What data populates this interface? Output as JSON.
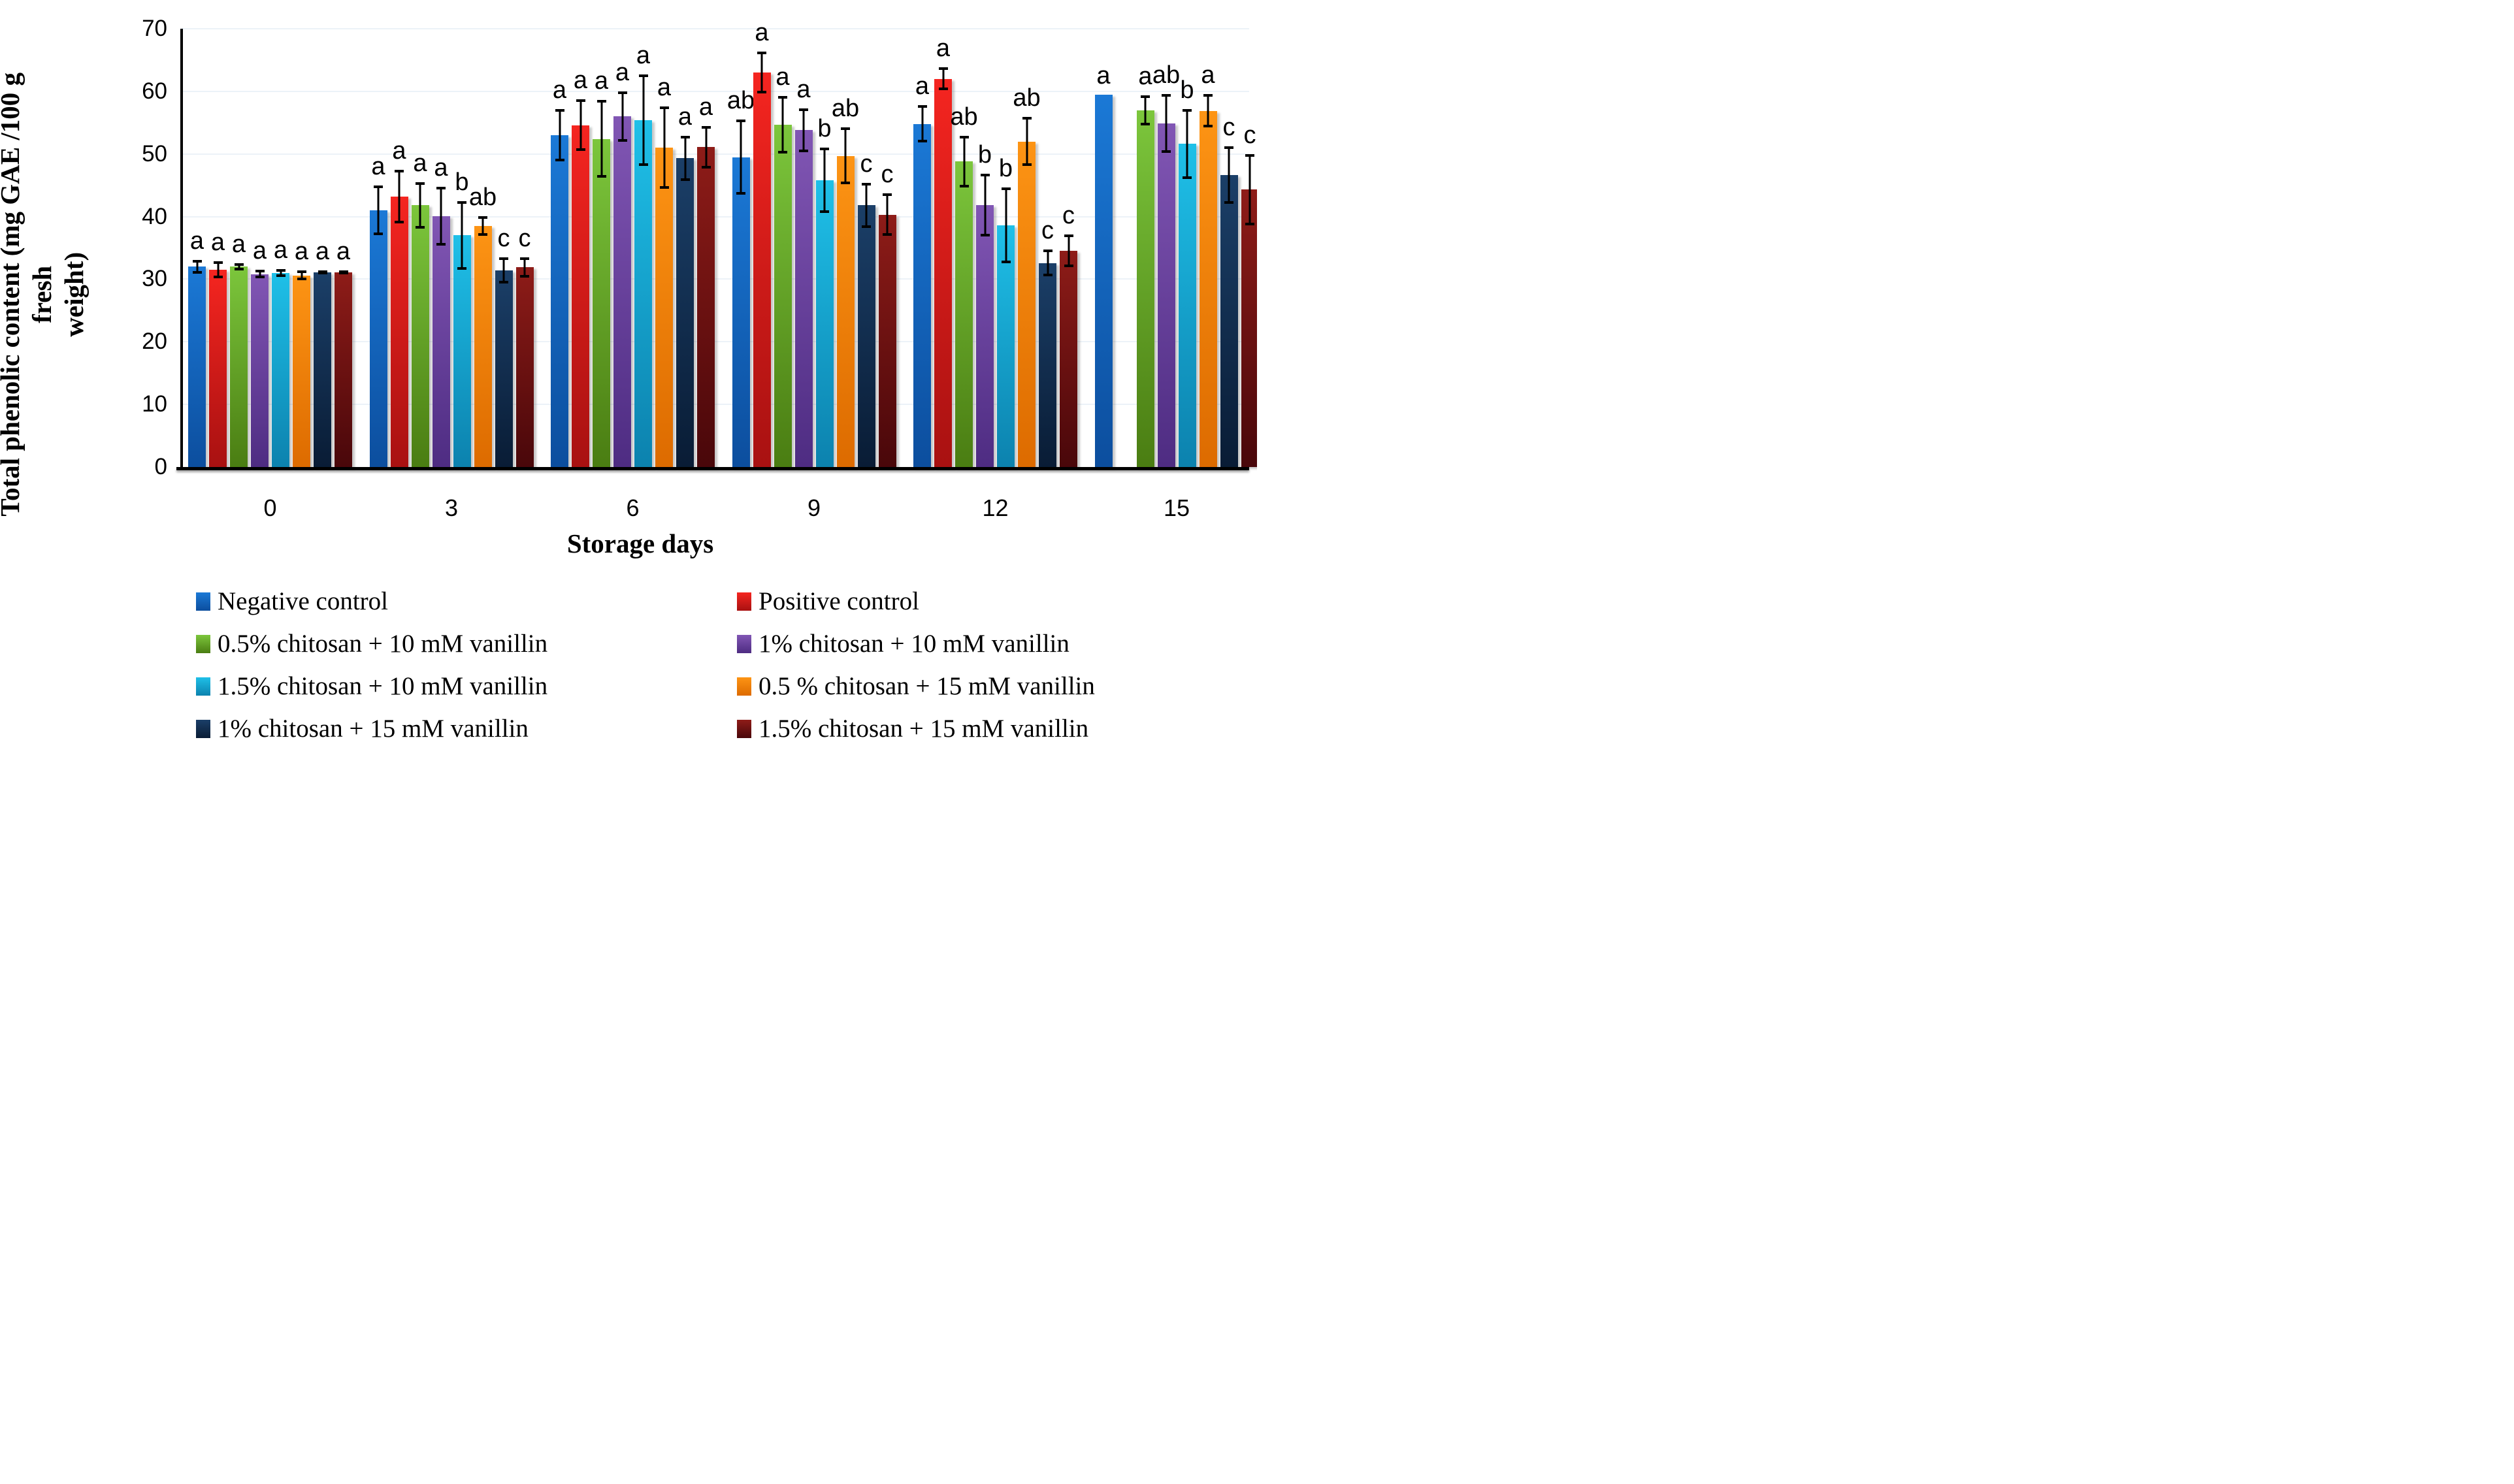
{
  "chart_data": {
    "type": "bar",
    "title": "",
    "xlabel": "Storage days",
    "ylabel": "Total phenolic content (mg GAE /100 g fresh weight)",
    "ylabel_line1": "Total phenolic content (mg GAE /100 g fresh",
    "ylabel_line2": "weight)",
    "ylim": [
      0,
      70
    ],
    "yticks": [
      0,
      10,
      20,
      30,
      40,
      50,
      60,
      70
    ],
    "categories": [
      "0",
      "3",
      "6",
      "9",
      "12",
      "15"
    ],
    "grid": "horizontal, very light",
    "legend_position": "bottom, two columns",
    "error_bars": "plus-minus with caps",
    "series": [
      {
        "name": "Negative control",
        "color_top": "#1b79d6",
        "color_bottom": "#0c4e9e",
        "values": [
          32.0,
          41.0,
          53.0,
          49.5,
          54.8,
          59.5
        ],
        "errors": [
          1.1,
          4.0,
          4.2,
          6.0,
          3.0,
          0
        ],
        "letters": [
          "a",
          "a",
          "a",
          "ab",
          "a",
          "a"
        ]
      },
      {
        "name": "Positive control",
        "color_top": "#f52520",
        "color_bottom": "#a81111",
        "values": [
          31.5,
          43.2,
          54.6,
          63.0,
          62.0,
          null
        ],
        "errors": [
          1.4,
          4.3,
          4.1,
          3.3,
          1.8,
          null
        ],
        "letters": [
          "a",
          "a",
          "a",
          "a",
          "a",
          null
        ]
      },
      {
        "name": "0.5% chitosan + 10 mM vanillin",
        "color_top": "#7cc63c",
        "color_bottom": "#4a7d12",
        "values": [
          32.0,
          41.8,
          52.4,
          54.7,
          48.8,
          57.0
        ],
        "errors": [
          0.6,
          3.7,
          6.2,
          4.6,
          4.1,
          2.4
        ],
        "letters": [
          "a",
          "a",
          "a",
          "a",
          "ab",
          "a"
        ]
      },
      {
        "name": "1% chitosan + 10 mM vanillin",
        "color_top": "#8156b4",
        "color_bottom": "#4e2c82",
        "values": [
          30.8,
          40.1,
          56.0,
          53.8,
          41.8,
          54.9
        ],
        "errors": [
          0.7,
          4.7,
          4.0,
          3.5,
          5.0,
          4.7
        ],
        "letters": [
          "a",
          "a",
          "a",
          "a",
          "b",
          "ab"
        ]
      },
      {
        "name": "1.5% chitosan + 10 mM vanillin",
        "color_top": "#1fc0e8",
        "color_bottom": "#0c82ae",
        "values": [
          31.0,
          37.0,
          55.4,
          45.8,
          38.6,
          51.6
        ],
        "errors": [
          0.6,
          5.5,
          7.3,
          5.2,
          6.1,
          5.6
        ],
        "letters": [
          "a",
          "b",
          "a",
          "b",
          "b",
          "b"
        ]
      },
      {
        "name": "0.5 % chitosan + 15 mM vanillin",
        "color_top": "#fd9414",
        "color_bottom": "#dd6b00",
        "values": [
          30.6,
          38.5,
          51.0,
          49.7,
          52.0,
          56.9
        ],
        "errors": [
          0.8,
          1.6,
          6.6,
          4.5,
          3.9,
          2.7
        ],
        "letters": [
          "a",
          "ab",
          "a",
          "ab",
          "ab",
          "a"
        ]
      },
      {
        "name": "1% chitosan + 15 mM vanillin",
        "color_top": "#1b3f68",
        "color_bottom": "#091c35",
        "values": [
          31.1,
          31.4,
          49.3,
          41.8,
          32.6,
          46.6
        ],
        "errors": [
          0.3,
          2.1,
          3.6,
          3.6,
          2.1,
          4.6
        ],
        "letters": [
          "a",
          "c",
          "a",
          "c",
          "c",
          "c"
        ]
      },
      {
        "name": "1.5% chitosan + 15 mM vanillin",
        "color_top": "#8e1c18",
        "color_bottom": "#49070a",
        "values": [
          31.1,
          31.9,
          51.1,
          40.3,
          34.5,
          44.3
        ],
        "errors": [
          0.3,
          1.6,
          3.4,
          3.4,
          2.6,
          5.7
        ],
        "letters": [
          "a",
          "c",
          "a",
          "c",
          "c",
          "c"
        ]
      }
    ]
  }
}
